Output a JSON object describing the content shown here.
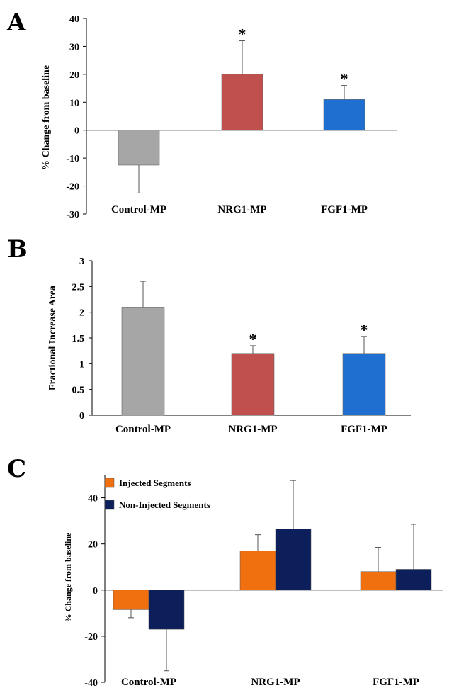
{
  "chart_data": [
    {
      "panel": "A",
      "type": "bar",
      "ylabel": "% Change from baseline",
      "categories": [
        "Control-MP",
        "NRG1-MP",
        "FGF1-MP"
      ],
      "values": [
        -12.5,
        20,
        11
      ],
      "errors": [
        10,
        12,
        5
      ],
      "significant": [
        false,
        true,
        true
      ],
      "colors": [
        "#a6a6a6",
        "#c0504d",
        "#1f6fd1"
      ],
      "yticks": [
        40,
        30,
        20,
        10,
        0,
        -10,
        -20,
        -30
      ],
      "ylim": [
        -30,
        40
      ],
      "marker": "*"
    },
    {
      "panel": "B",
      "type": "bar",
      "ylabel": "Fractional Increase Area",
      "categories": [
        "Control-MP",
        "NRG1-MP",
        "FGF1-MP"
      ],
      "values": [
        2.1,
        1.2,
        1.2
      ],
      "errors": [
        0.5,
        0.15,
        0.33
      ],
      "significant": [
        false,
        true,
        true
      ],
      "colors": [
        "#a6a6a6",
        "#c0504d",
        "#1f6fd1"
      ],
      "yticks": [
        "3",
        "2.5",
        "2",
        "1.5",
        "1",
        "0.5",
        "0"
      ],
      "ylim": [
        0,
        3
      ],
      "marker": "*"
    },
    {
      "panel": "C",
      "type": "bar",
      "ylabel": "% Change from baseline",
      "categories": [
        "Control-MP",
        "NRG1-MP",
        "FGF1-MP"
      ],
      "series": [
        {
          "name": "Injected Segments",
          "values": [
            -8.5,
            17,
            8
          ],
          "errors": [
            3.5,
            7,
            10.5
          ],
          "color": "#f07010"
        },
        {
          "name": "Non-Injected Segments",
          "values": [
            -17,
            26.5,
            9
          ],
          "errors": [
            18,
            21,
            19.5
          ],
          "color": "#0c1f5a"
        }
      ],
      "yticks": [
        40,
        20,
        0,
        -20,
        -40
      ],
      "ylim": [
        -40,
        50
      ],
      "legend_position": "top-left"
    }
  ]
}
